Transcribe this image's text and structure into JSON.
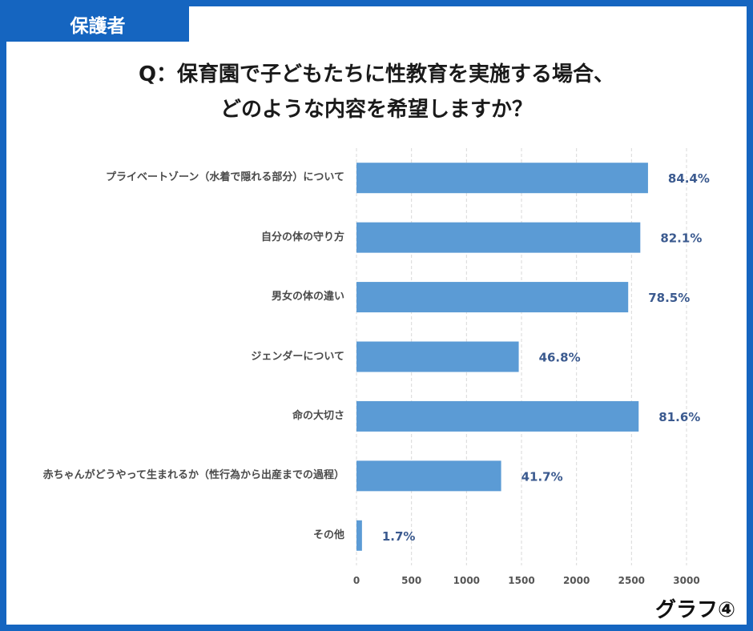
{
  "tag": "保護者",
  "title_line1": "Q：保育園で子どもたちに性教育を実施する場合、",
  "title_line2": "どのような内容を希望しますか？",
  "footer": "グラフ④",
  "colors": {
    "frame": "#1565c0",
    "bar": "#5b9bd5",
    "value_label": "#3b5a8f"
  },
  "chart_data": {
    "type": "bar",
    "orientation": "horizontal",
    "categories": [
      "プライベートゾーン（水着で隠れる部分）について",
      "自分の体の守り方",
      "男女の体の違い",
      "ジェンダーについて",
      "命の大切さ",
      "赤ちゃんがどうやって生まれるか（性行為から出産までの過程）",
      "その他"
    ],
    "values": [
      2650,
      2580,
      2470,
      1475,
      2565,
      1315,
      50
    ],
    "data_labels": [
      "84.4%",
      "82.1%",
      "78.5%",
      "46.8%",
      "81.6%",
      "41.7%",
      "1.7%"
    ],
    "xlim": [
      0,
      3000
    ],
    "xticks": [
      "0",
      "500",
      "1000",
      "1500",
      "2000",
      "2500",
      "3000"
    ],
    "grid": true,
    "title": "Q：保育園で子どもたちに性教育を実施する場合、どのような内容を希望しますか？"
  }
}
